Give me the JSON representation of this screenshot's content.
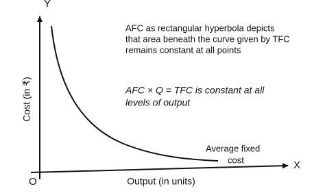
{
  "axes": {
    "y_letter": "Y",
    "x_letter": "X",
    "origin": "O",
    "y_label": "Cost (in ₹)",
    "x_label": "Output (in units)"
  },
  "annotation": {
    "lines": [
      "AFC as rectangular hyperbola depicts",
      "that area beneath the curve given by TFC",
      "remains constant at all points"
    ]
  },
  "formula": {
    "lines": [
      "AFC × Q = TFC is constant at all",
      "levels of output"
    ]
  },
  "curve_label": {
    "lines": [
      "Average fixed",
      "cost"
    ]
  }
}
